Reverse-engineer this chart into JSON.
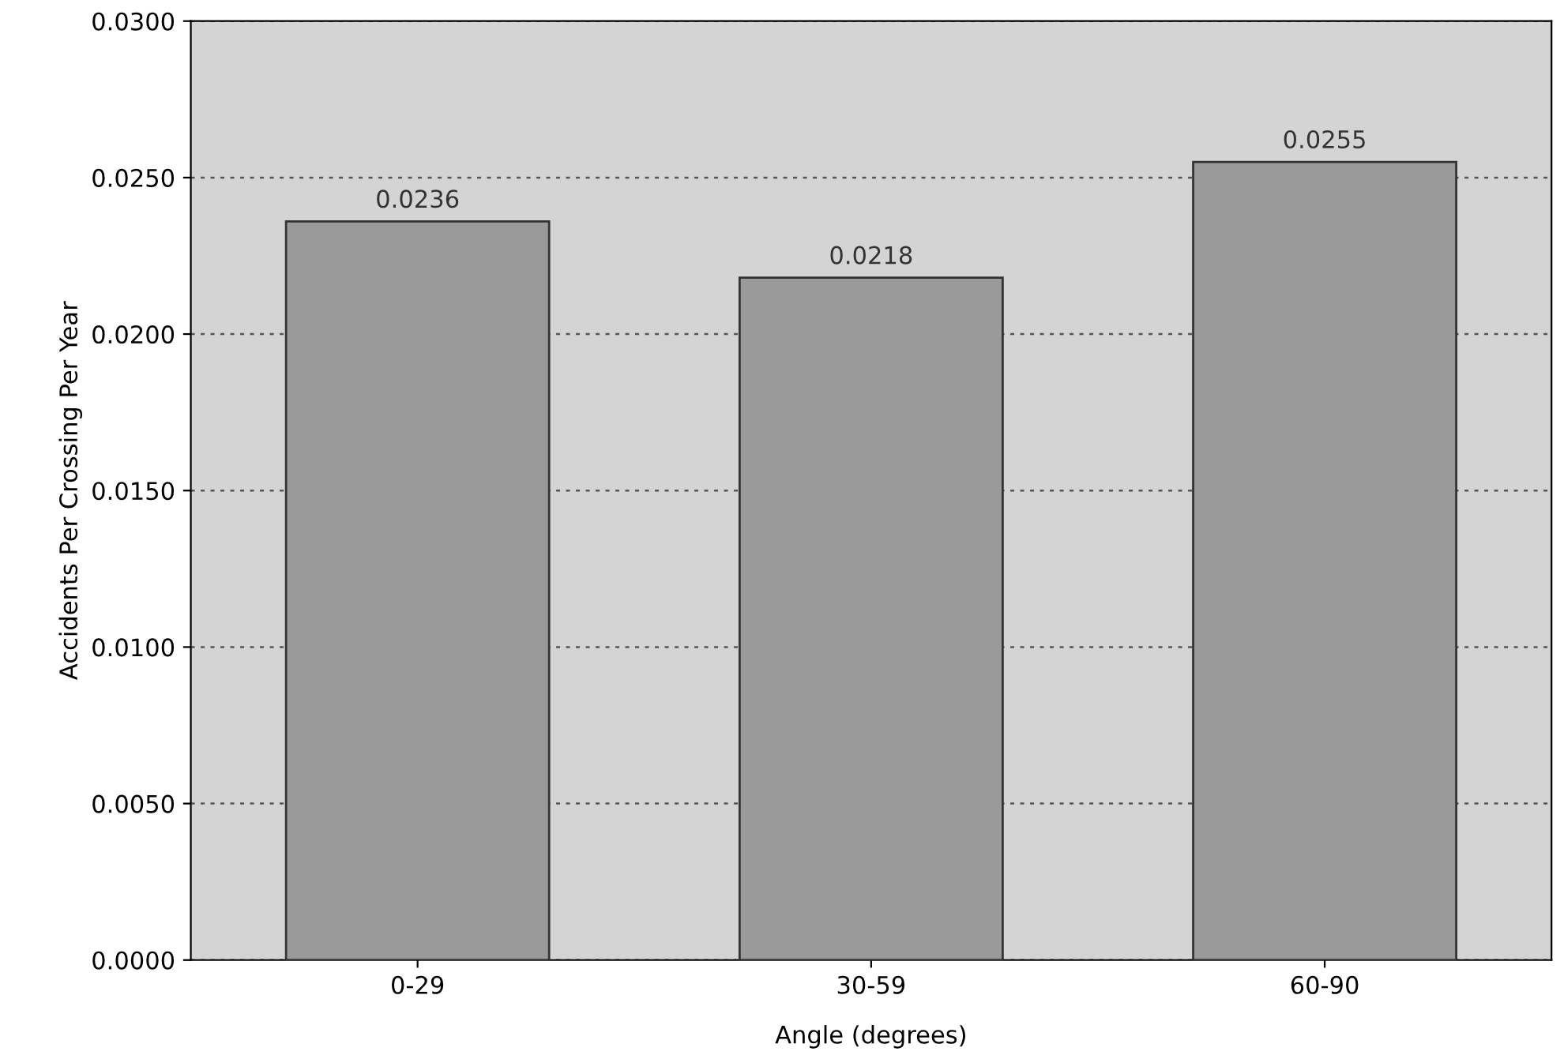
{
  "chart_data": {
    "type": "bar",
    "xlabel": "Angle (degrees)",
    "ylabel": "Accidents Per Crossing Per Year",
    "categories": [
      "0-29",
      "30-59",
      "60-90"
    ],
    "values": [
      0.0236,
      0.0218,
      0.0255
    ],
    "color": "#9a9a9a",
    "ylim": [
      0,
      0.03
    ],
    "yticks": [
      {
        "value": 0,
        "label": "0.0000"
      },
      {
        "value": 0.005,
        "label": "0.0050"
      },
      {
        "value": 0.01,
        "label": "0.0100"
      },
      {
        "value": 0.015,
        "label": "0.0150"
      },
      {
        "value": 0.02,
        "label": "0.0200"
      },
      {
        "value": 0.025,
        "label": "0.0250"
      },
      {
        "value": 0.03,
        "label": "0.0300"
      }
    ],
    "grid": "y",
    "data_labels": true
  }
}
